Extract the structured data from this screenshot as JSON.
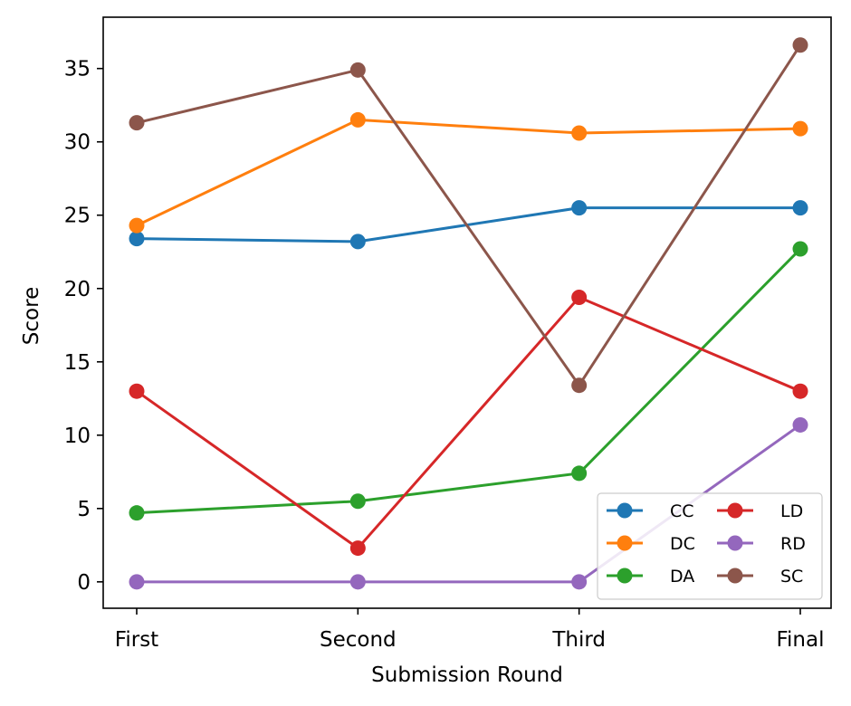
{
  "chart_data": {
    "type": "line",
    "title": "",
    "xlabel": "Submission Round",
    "ylabel": "Score",
    "categories": [
      "First",
      "Second",
      "Third",
      "Final"
    ],
    "ylim": [
      -1.8,
      38.5
    ],
    "yticks": [
      0,
      5,
      10,
      15,
      20,
      25,
      30,
      35
    ],
    "grid": false,
    "legend_position": "lower-right",
    "legend_columns": 2,
    "marker": "circle",
    "series": [
      {
        "name": "CC",
        "color": "#1f77b4",
        "values": [
          23.4,
          23.2,
          25.5,
          25.5
        ]
      },
      {
        "name": "DC",
        "color": "#ff7f0e",
        "values": [
          24.3,
          31.5,
          30.6,
          30.9
        ]
      },
      {
        "name": "DA",
        "color": "#2ca02c",
        "values": [
          4.7,
          5.5,
          7.4,
          22.7
        ]
      },
      {
        "name": "LD",
        "color": "#d62728",
        "values": [
          13.0,
          2.3,
          19.4,
          13.0
        ]
      },
      {
        "name": "RD",
        "color": "#9467bd",
        "values": [
          0.0,
          0.0,
          0.0,
          10.7
        ]
      },
      {
        "name": "SC",
        "color": "#8c564b",
        "values": [
          31.3,
          34.9,
          13.4,
          36.6
        ]
      }
    ]
  }
}
